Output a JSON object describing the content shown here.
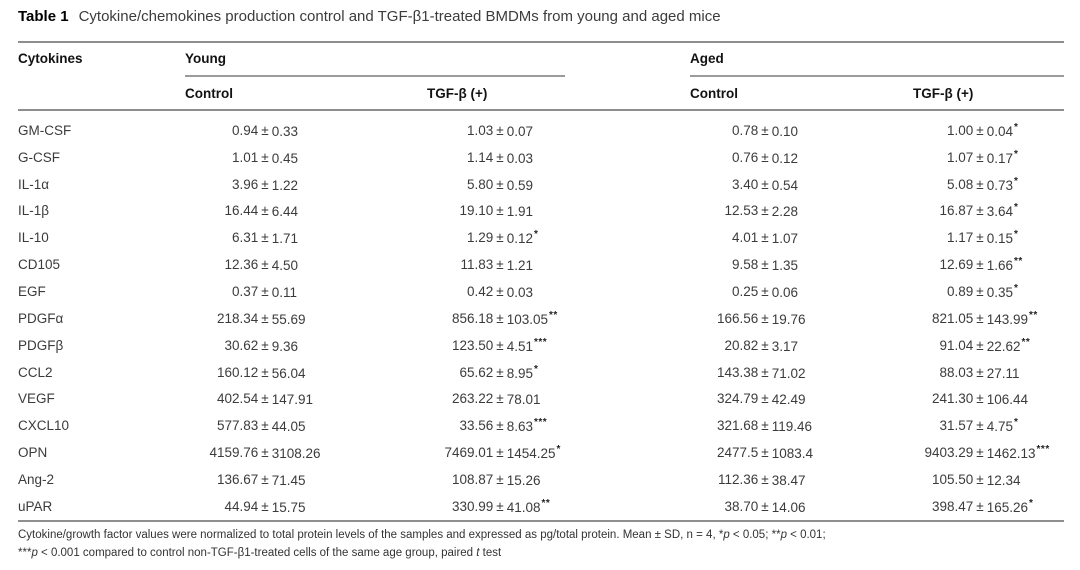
{
  "title": {
    "label": "Table 1",
    "text": "Cytokine/chemokines production control and TGF-β1-treated BMDMs from young and aged mice"
  },
  "header": {
    "col1": "Cytokines",
    "group1": "Young",
    "group2": "Aged",
    "sub1": "Control",
    "sub2": "TGF-β (+)",
    "sub3": "Control",
    "sub4": "TGF-β (+)"
  },
  "rows": [
    {
      "name": "GM-CSF",
      "cells": [
        [
          "0.94",
          "0.33",
          ""
        ],
        [
          "1.03",
          "0.07",
          ""
        ],
        [
          "0.78",
          "0.10",
          ""
        ],
        [
          "1.00",
          "0.04",
          "*"
        ]
      ]
    },
    {
      "name": "G-CSF",
      "cells": [
        [
          "1.01",
          "0.45",
          ""
        ],
        [
          "1.14",
          "0.03",
          ""
        ],
        [
          "0.76",
          "0.12",
          ""
        ],
        [
          "1.07",
          "0.17",
          "*"
        ]
      ]
    },
    {
      "name": "IL-1α",
      "cells": [
        [
          "3.96",
          "1.22",
          ""
        ],
        [
          "5.80",
          "0.59",
          ""
        ],
        [
          "3.40",
          "0.54",
          ""
        ],
        [
          "5.08",
          "0.73",
          "*"
        ]
      ]
    },
    {
      "name": "IL-1β",
      "cells": [
        [
          "16.44",
          "6.44",
          ""
        ],
        [
          "19.10",
          "1.91",
          ""
        ],
        [
          "12.53",
          "2.28",
          ""
        ],
        [
          "16.87",
          "3.64",
          "*"
        ]
      ]
    },
    {
      "name": "IL-10",
      "cells": [
        [
          "6.31",
          "1.71",
          ""
        ],
        [
          "1.29",
          "0.12",
          "*"
        ],
        [
          "4.01",
          "1.07",
          ""
        ],
        [
          "1.17",
          "0.15",
          "*"
        ]
      ]
    },
    {
      "name": "CD105",
      "cells": [
        [
          "12.36",
          "4.50",
          ""
        ],
        [
          "11.83",
          "1.21",
          ""
        ],
        [
          "9.58",
          "1.35",
          ""
        ],
        [
          "12.69",
          "1.66",
          "**"
        ]
      ]
    },
    {
      "name": "EGF",
      "cells": [
        [
          "0.37",
          "0.11",
          ""
        ],
        [
          "0.42",
          "0.03",
          ""
        ],
        [
          "0.25",
          "0.06",
          ""
        ],
        [
          "0.89",
          "0.35",
          "*"
        ]
      ]
    },
    {
      "name": "PDGFα",
      "cells": [
        [
          "218.34",
          "55.69",
          ""
        ],
        [
          "856.18",
          "103.05",
          "**"
        ],
        [
          "166.56",
          "19.76",
          ""
        ],
        [
          "821.05",
          "143.99",
          "**"
        ]
      ]
    },
    {
      "name": "PDGFβ",
      "cells": [
        [
          "30.62",
          "9.36",
          ""
        ],
        [
          "123.50",
          "4.51",
          "***"
        ],
        [
          "20.82",
          "3.17",
          ""
        ],
        [
          "91.04",
          "22.62",
          "**"
        ]
      ]
    },
    {
      "name": "CCL2",
      "cells": [
        [
          "160.12",
          "56.04",
          ""
        ],
        [
          "65.62",
          "8.95",
          "*"
        ],
        [
          "143.38",
          "71.02",
          ""
        ],
        [
          "88.03",
          "27.11",
          ""
        ]
      ]
    },
    {
      "name": "VEGF",
      "cells": [
        [
          "402.54",
          "147.91",
          ""
        ],
        [
          "263.22",
          "78.01",
          ""
        ],
        [
          "324.79",
          "42.49",
          ""
        ],
        [
          "241.30",
          "106.44",
          ""
        ]
      ]
    },
    {
      "name": "CXCL10",
      "cells": [
        [
          "577.83",
          "44.05",
          ""
        ],
        [
          "33.56",
          "8.63",
          "***"
        ],
        [
          "321.68",
          "119.46",
          ""
        ],
        [
          "31.57",
          "4.75",
          "*"
        ]
      ]
    },
    {
      "name": "OPN",
      "cells": [
        [
          "4159.76",
          "3108.26",
          ""
        ],
        [
          "7469.01",
          "1454.25",
          "*"
        ],
        [
          "2477.5",
          "1083.4",
          ""
        ],
        [
          "9403.29",
          "1462.13",
          "***"
        ]
      ]
    },
    {
      "name": "Ang-2",
      "cells": [
        [
          "136.67",
          "71.45",
          ""
        ],
        [
          "108.87",
          "15.26",
          ""
        ],
        [
          "112.36",
          "38.47",
          ""
        ],
        [
          "105.50",
          "12.34",
          ""
        ]
      ]
    },
    {
      "name": "uPAR",
      "cells": [
        [
          "44.94",
          "15.75",
          ""
        ],
        [
          "330.99",
          "41.08",
          "**"
        ],
        [
          "38.70",
          "14.06",
          ""
        ],
        [
          "398.47",
          "165.26",
          "*"
        ]
      ]
    }
  ],
  "pm_symbol": "±",
  "footnote": {
    "line1": [
      {
        "t": "Cytokine/growth factor values were normalized to total protein levels of the samples and expressed as pg/total protein. Mean ± SD, n = 4, *"
      },
      {
        "t": "p",
        "i": true
      },
      {
        "t": " < 0.05; **"
      },
      {
        "t": "p",
        "i": true
      },
      {
        "t": " < 0.01;"
      }
    ],
    "line2": [
      {
        "t": "***"
      },
      {
        "t": "p",
        "i": true
      },
      {
        "t": " < 0.001 compared to control non-TGF-β1-treated cells of the same age group, paired "
      },
      {
        "t": "t",
        "i": true
      },
      {
        "t": " test"
      }
    ]
  }
}
